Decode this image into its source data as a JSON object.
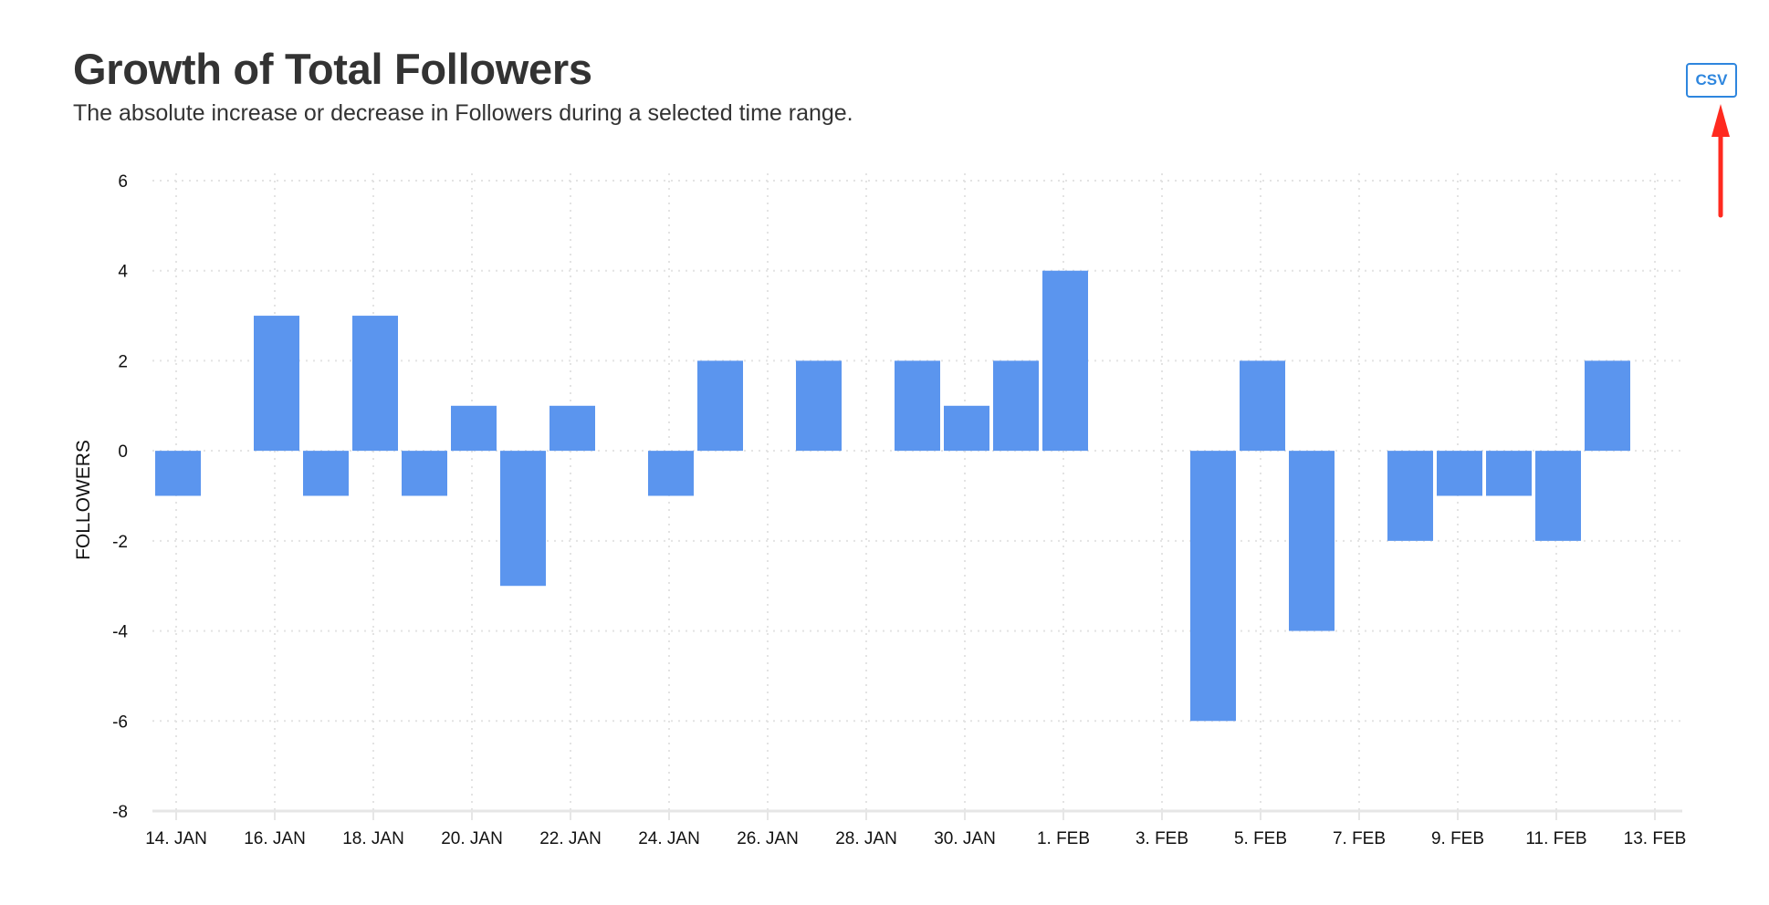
{
  "header": {
    "title": "Growth of Total Followers",
    "subtitle": "The absolute increase or decrease in Followers during a selected time range."
  },
  "toolbar": {
    "csv_label": "CSV"
  },
  "annotation": {
    "arrow_color": "#ff2a1f",
    "points_to": "csv-button"
  },
  "colors": {
    "bar": "#5b95ee",
    "button_accent": "#2e86de",
    "grid": "#e3e3e3",
    "axis": "#e6e6e6"
  },
  "chart_data": {
    "type": "bar",
    "title": "Growth of Total Followers",
    "subtitle": "The absolute increase or decrease in Followers during a selected time range.",
    "xlabel": "",
    "ylabel": "FOLLOWERS",
    "ylim": [
      -8,
      6
    ],
    "yticks": [
      6,
      4,
      2,
      0,
      -2,
      -4,
      -6,
      -8
    ],
    "xtick_labels": [
      "14. JAN",
      "16. JAN",
      "18. JAN",
      "20. JAN",
      "22. JAN",
      "24. JAN",
      "26. JAN",
      "28. JAN",
      "30. JAN",
      "1. FEB",
      "3. FEB",
      "5. FEB",
      "7. FEB",
      "9. FEB",
      "11. FEB",
      "13. FEB"
    ],
    "grid": true,
    "legend": "none",
    "categories": [
      "14. JAN",
      "15. JAN",
      "16. JAN",
      "17. JAN",
      "18. JAN",
      "19. JAN",
      "20. JAN",
      "21. JAN",
      "22. JAN",
      "23. JAN",
      "24. JAN",
      "25. JAN",
      "26. JAN",
      "27. JAN",
      "28. JAN",
      "29. JAN",
      "30. JAN",
      "31. JAN",
      "1. FEB",
      "2. FEB",
      "3. FEB",
      "4. FEB",
      "5. FEB",
      "6. FEB",
      "7. FEB",
      "8. FEB",
      "9. FEB",
      "10. FEB",
      "11. FEB",
      "12. FEB",
      "13. FEB"
    ],
    "values": [
      -1,
      0,
      3,
      -1,
      3,
      -1,
      1,
      -3,
      1,
      0,
      -1,
      2,
      0,
      2,
      0,
      2,
      1,
      2,
      4,
      0,
      0,
      -6,
      2,
      -4,
      0,
      -2,
      -1,
      -1,
      -2,
      2,
      0
    ]
  }
}
